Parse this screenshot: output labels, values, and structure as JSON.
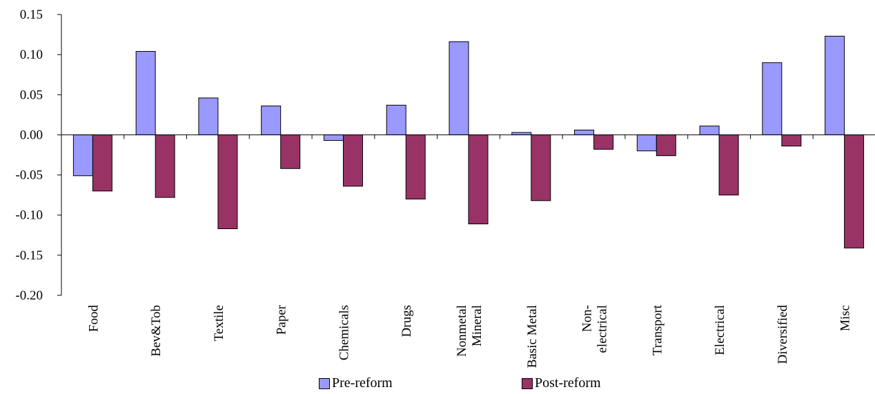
{
  "chart_data": {
    "type": "bar",
    "title": "",
    "xlabel": "",
    "ylabel": "",
    "ylim": [
      -0.2,
      0.15
    ],
    "yticks": [
      "0.15",
      "0.10",
      "0.05",
      "0.00",
      "-0.05",
      "-0.10",
      "-0.15",
      "-0.20"
    ],
    "ytick_values": [
      0.15,
      0.1,
      0.05,
      0.0,
      -0.05,
      -0.1,
      -0.15,
      -0.2
    ],
    "categories": [
      [
        "Food"
      ],
      [
        "Bev&Tob"
      ],
      [
        "Textile"
      ],
      [
        "Paper"
      ],
      [
        "Chemicals"
      ],
      [
        "Drugs"
      ],
      [
        "Nonmetal",
        "Mineral"
      ],
      [
        "Basic Metal"
      ],
      [
        "Non-",
        "electrical"
      ],
      [
        "Transport"
      ],
      [
        "Electrical"
      ],
      [
        "Diversified"
      ],
      [
        "Misc"
      ]
    ],
    "series": [
      {
        "name": "Pre-reform",
        "color": "#9999ff",
        "values": [
          -0.051,
          0.104,
          0.046,
          0.036,
          -0.007,
          0.037,
          0.116,
          0.003,
          0.006,
          -0.02,
          0.011,
          0.09,
          0.123
        ]
      },
      {
        "name": "Post-reform",
        "color": "#993366",
        "values": [
          -0.07,
          -0.078,
          -0.117,
          -0.042,
          -0.064,
          -0.08,
          -0.111,
          -0.082,
          -0.018,
          -0.026,
          -0.075,
          -0.014,
          -0.141
        ]
      }
    ],
    "grid": false,
    "legend_position": "bottom"
  }
}
